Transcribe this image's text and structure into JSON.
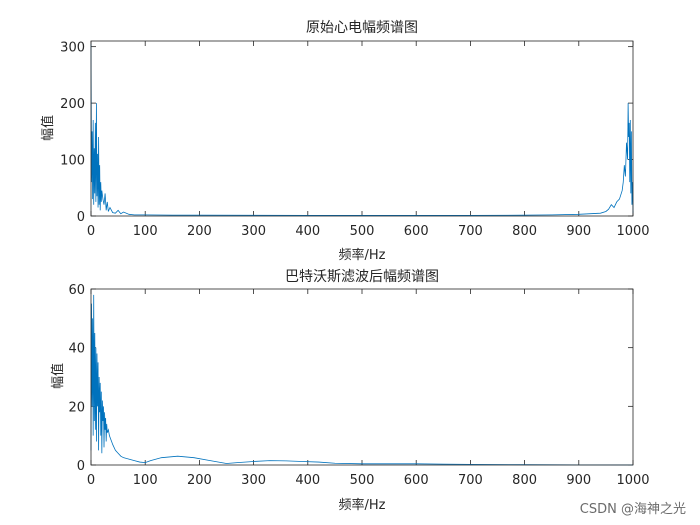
{
  "watermark": "CSDN @海神之光",
  "colors": {
    "line": "#0072BD",
    "axis": "#262626",
    "background": "#ffffff"
  },
  "chart_data": [
    {
      "type": "line",
      "title": "原始心电幅频谱图",
      "xlabel": "频率/Hz",
      "ylabel": "幅值",
      "xlim": [
        0,
        1000
      ],
      "ylim": [
        0,
        310
      ],
      "xticks": [
        0,
        100,
        200,
        300,
        400,
        500,
        600,
        700,
        800,
        900,
        1000
      ],
      "yticks": [
        0,
        100,
        200,
        300
      ],
      "grid": false,
      "series": [
        {
          "values_description_free": true,
          "x": [
            0,
            1,
            2,
            3,
            4,
            5,
            6,
            7,
            8,
            9,
            10,
            11,
            12,
            13,
            14,
            15,
            16,
            17,
            18,
            19,
            20,
            22,
            24,
            26,
            28,
            30,
            32,
            35,
            40,
            45,
            50,
            55,
            60,
            70,
            80,
            100,
            150,
            200,
            300,
            400,
            500,
            600,
            700,
            800,
            850,
            900,
            940,
            950,
            955,
            960,
            965,
            970,
            975,
            980,
            982,
            984,
            986,
            988,
            990,
            991,
            992,
            993,
            994,
            995,
            996,
            997,
            998,
            999,
            1000
          ],
          "y": [
            305,
            60,
            150,
            30,
            170,
            20,
            120,
            40,
            165,
            25,
            200,
            35,
            110,
            15,
            140,
            20,
            90,
            10,
            60,
            25,
            45,
            30,
            20,
            40,
            10,
            25,
            8,
            15,
            6,
            5,
            10,
            4,
            7,
            3,
            2,
            2,
            1.5,
            1.5,
            1.2,
            1,
            1,
            1,
            1,
            1.5,
            2,
            3,
            5,
            8,
            12,
            20,
            15,
            25,
            30,
            45,
            60,
            90,
            70,
            130,
            100,
            200,
            140,
            165,
            60,
            170,
            40,
            150,
            20,
            60,
            5
          ]
        }
      ]
    },
    {
      "type": "line",
      "title": "巴特沃斯滤波后幅频谱图",
      "xlabel": "频率/Hz",
      "ylabel": "幅值",
      "xlim": [
        0,
        1000
      ],
      "ylim": [
        0,
        60
      ],
      "xticks": [
        0,
        100,
        200,
        300,
        400,
        500,
        600,
        700,
        800,
        900,
        1000
      ],
      "yticks": [
        0,
        20,
        40,
        60
      ],
      "grid": false,
      "series": [
        {
          "x": [
            0,
            1,
            2,
            3,
            4,
            5,
            6,
            7,
            8,
            9,
            10,
            11,
            12,
            13,
            14,
            15,
            16,
            17,
            18,
            19,
            20,
            21,
            22,
            23,
            24,
            25,
            26,
            27,
            28,
            29,
            30,
            32,
            34,
            36,
            38,
            40,
            45,
            50,
            55,
            60,
            70,
            80,
            90,
            100,
            110,
            130,
            160,
            190,
            220,
            250,
            270,
            300,
            330,
            360,
            390,
            420,
            450,
            500,
            550,
            600,
            650,
            700,
            800,
            900,
            1000
          ],
          "y": [
            5,
            55,
            20,
            50,
            10,
            58,
            15,
            45,
            12,
            40,
            8,
            38,
            20,
            35,
            5,
            30,
            18,
            28,
            10,
            25,
            4,
            22,
            15,
            20,
            6,
            18,
            12,
            16,
            8,
            14,
            11,
            12,
            10,
            9,
            8,
            7,
            5,
            4,
            3,
            2.5,
            2,
            1.5,
            1,
            0.8,
            1.5,
            2.5,
            3,
            2.5,
            1.5,
            0.5,
            0.8,
            1.2,
            1.5,
            1.4,
            1.2,
            1,
            0.6,
            0.4,
            0.4,
            0.4,
            0.3,
            0.2,
            0.1,
            0.05,
            0.02
          ]
        }
      ]
    }
  ]
}
